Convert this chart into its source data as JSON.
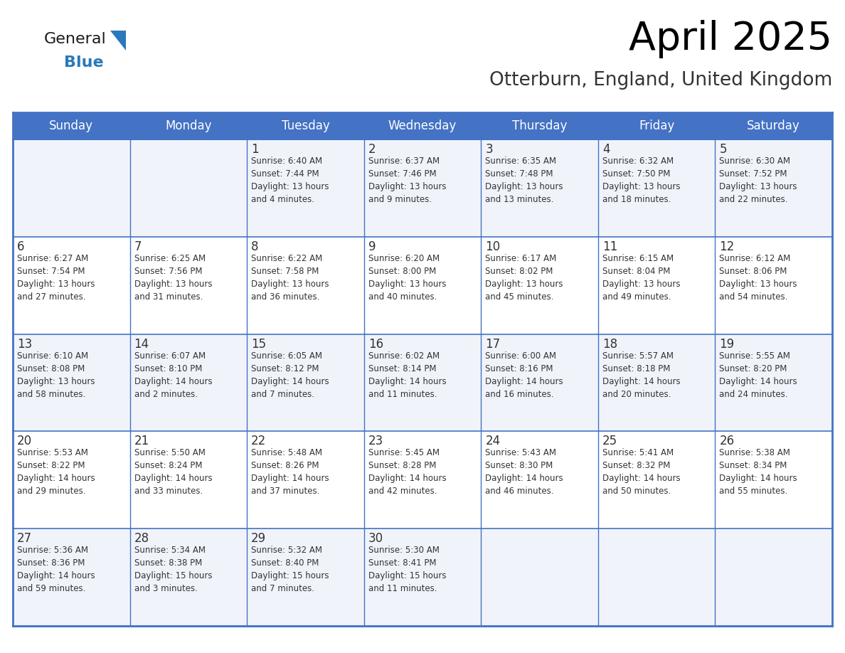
{
  "title": "April 2025",
  "subtitle": "Otterburn, England, United Kingdom",
  "header_bg_color": "#4472C4",
  "header_text_color": "#FFFFFF",
  "cell_bg_even": "#FFFFFF",
  "cell_bg_odd": "#F0F4FA",
  "grid_line_color": "#4472C4",
  "day_number_color": "#333333",
  "cell_text_color": "#333333",
  "days_of_week": [
    "Sunday",
    "Monday",
    "Tuesday",
    "Wednesday",
    "Thursday",
    "Friday",
    "Saturday"
  ],
  "weeks": [
    [
      {
        "day": "",
        "text": ""
      },
      {
        "day": "",
        "text": ""
      },
      {
        "day": "1",
        "text": "Sunrise: 6:40 AM\nSunset: 7:44 PM\nDaylight: 13 hours\nand 4 minutes."
      },
      {
        "day": "2",
        "text": "Sunrise: 6:37 AM\nSunset: 7:46 PM\nDaylight: 13 hours\nand 9 minutes."
      },
      {
        "day": "3",
        "text": "Sunrise: 6:35 AM\nSunset: 7:48 PM\nDaylight: 13 hours\nand 13 minutes."
      },
      {
        "day": "4",
        "text": "Sunrise: 6:32 AM\nSunset: 7:50 PM\nDaylight: 13 hours\nand 18 minutes."
      },
      {
        "day": "5",
        "text": "Sunrise: 6:30 AM\nSunset: 7:52 PM\nDaylight: 13 hours\nand 22 minutes."
      }
    ],
    [
      {
        "day": "6",
        "text": "Sunrise: 6:27 AM\nSunset: 7:54 PM\nDaylight: 13 hours\nand 27 minutes."
      },
      {
        "day": "7",
        "text": "Sunrise: 6:25 AM\nSunset: 7:56 PM\nDaylight: 13 hours\nand 31 minutes."
      },
      {
        "day": "8",
        "text": "Sunrise: 6:22 AM\nSunset: 7:58 PM\nDaylight: 13 hours\nand 36 minutes."
      },
      {
        "day": "9",
        "text": "Sunrise: 6:20 AM\nSunset: 8:00 PM\nDaylight: 13 hours\nand 40 minutes."
      },
      {
        "day": "10",
        "text": "Sunrise: 6:17 AM\nSunset: 8:02 PM\nDaylight: 13 hours\nand 45 minutes."
      },
      {
        "day": "11",
        "text": "Sunrise: 6:15 AM\nSunset: 8:04 PM\nDaylight: 13 hours\nand 49 minutes."
      },
      {
        "day": "12",
        "text": "Sunrise: 6:12 AM\nSunset: 8:06 PM\nDaylight: 13 hours\nand 54 minutes."
      }
    ],
    [
      {
        "day": "13",
        "text": "Sunrise: 6:10 AM\nSunset: 8:08 PM\nDaylight: 13 hours\nand 58 minutes."
      },
      {
        "day": "14",
        "text": "Sunrise: 6:07 AM\nSunset: 8:10 PM\nDaylight: 14 hours\nand 2 minutes."
      },
      {
        "day": "15",
        "text": "Sunrise: 6:05 AM\nSunset: 8:12 PM\nDaylight: 14 hours\nand 7 minutes."
      },
      {
        "day": "16",
        "text": "Sunrise: 6:02 AM\nSunset: 8:14 PM\nDaylight: 14 hours\nand 11 minutes."
      },
      {
        "day": "17",
        "text": "Sunrise: 6:00 AM\nSunset: 8:16 PM\nDaylight: 14 hours\nand 16 minutes."
      },
      {
        "day": "18",
        "text": "Sunrise: 5:57 AM\nSunset: 8:18 PM\nDaylight: 14 hours\nand 20 minutes."
      },
      {
        "day": "19",
        "text": "Sunrise: 5:55 AM\nSunset: 8:20 PM\nDaylight: 14 hours\nand 24 minutes."
      }
    ],
    [
      {
        "day": "20",
        "text": "Sunrise: 5:53 AM\nSunset: 8:22 PM\nDaylight: 14 hours\nand 29 minutes."
      },
      {
        "day": "21",
        "text": "Sunrise: 5:50 AM\nSunset: 8:24 PM\nDaylight: 14 hours\nand 33 minutes."
      },
      {
        "day": "22",
        "text": "Sunrise: 5:48 AM\nSunset: 8:26 PM\nDaylight: 14 hours\nand 37 minutes."
      },
      {
        "day": "23",
        "text": "Sunrise: 5:45 AM\nSunset: 8:28 PM\nDaylight: 14 hours\nand 42 minutes."
      },
      {
        "day": "24",
        "text": "Sunrise: 5:43 AM\nSunset: 8:30 PM\nDaylight: 14 hours\nand 46 minutes."
      },
      {
        "day": "25",
        "text": "Sunrise: 5:41 AM\nSunset: 8:32 PM\nDaylight: 14 hours\nand 50 minutes."
      },
      {
        "day": "26",
        "text": "Sunrise: 5:38 AM\nSunset: 8:34 PM\nDaylight: 14 hours\nand 55 minutes."
      }
    ],
    [
      {
        "day": "27",
        "text": "Sunrise: 5:36 AM\nSunset: 8:36 PM\nDaylight: 14 hours\nand 59 minutes."
      },
      {
        "day": "28",
        "text": "Sunrise: 5:34 AM\nSunset: 8:38 PM\nDaylight: 15 hours\nand 3 minutes."
      },
      {
        "day": "29",
        "text": "Sunrise: 5:32 AM\nSunset: 8:40 PM\nDaylight: 15 hours\nand 7 minutes."
      },
      {
        "day": "30",
        "text": "Sunrise: 5:30 AM\nSunset: 8:41 PM\nDaylight: 15 hours\nand 11 minutes."
      },
      {
        "day": "",
        "text": ""
      },
      {
        "day": "",
        "text": ""
      },
      {
        "day": "",
        "text": ""
      }
    ]
  ],
  "logo_text_general": "General",
  "logo_text_blue": "Blue",
  "logo_color_general": "#1a1a1a",
  "logo_color_blue": "#2979BC",
  "logo_triangle_color": "#2979BC"
}
